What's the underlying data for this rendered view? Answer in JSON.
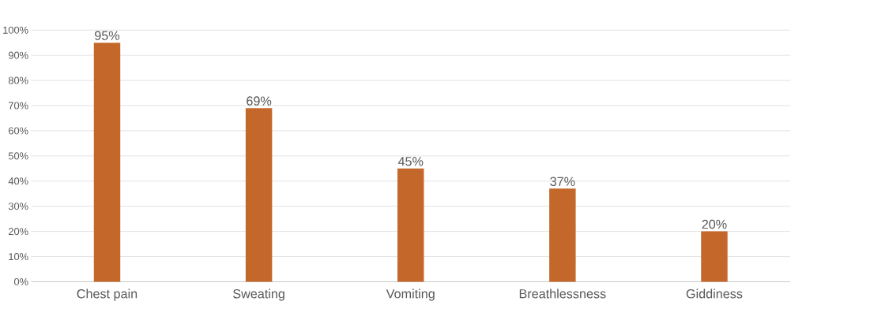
{
  "chart_data": {
    "type": "bar",
    "categories": [
      "Chest pain",
      "Sweating",
      "Vomiting",
      "Breathlessness",
      "Giddiness"
    ],
    "values": [
      95,
      69,
      45,
      37,
      20
    ],
    "value_labels": [
      "95%",
      "69%",
      "45%",
      "37%",
      "20%"
    ],
    "color": "#c4672a",
    "ylim": [
      0,
      100
    ],
    "yticks": [
      {
        "value": 0,
        "label": "0%"
      },
      {
        "value": 10,
        "label": "10%"
      },
      {
        "value": 20,
        "label": "20%"
      },
      {
        "value": 30,
        "label": "30%"
      },
      {
        "value": 40,
        "label": "40%"
      },
      {
        "value": 50,
        "label": "50%"
      },
      {
        "value": 60,
        "label": "60%"
      },
      {
        "value": 70,
        "label": "70%"
      },
      {
        "value": 80,
        "label": "80%"
      },
      {
        "value": 90,
        "label": "90%"
      },
      {
        "value": 100,
        "label": "100%"
      }
    ],
    "grid": "y"
  }
}
